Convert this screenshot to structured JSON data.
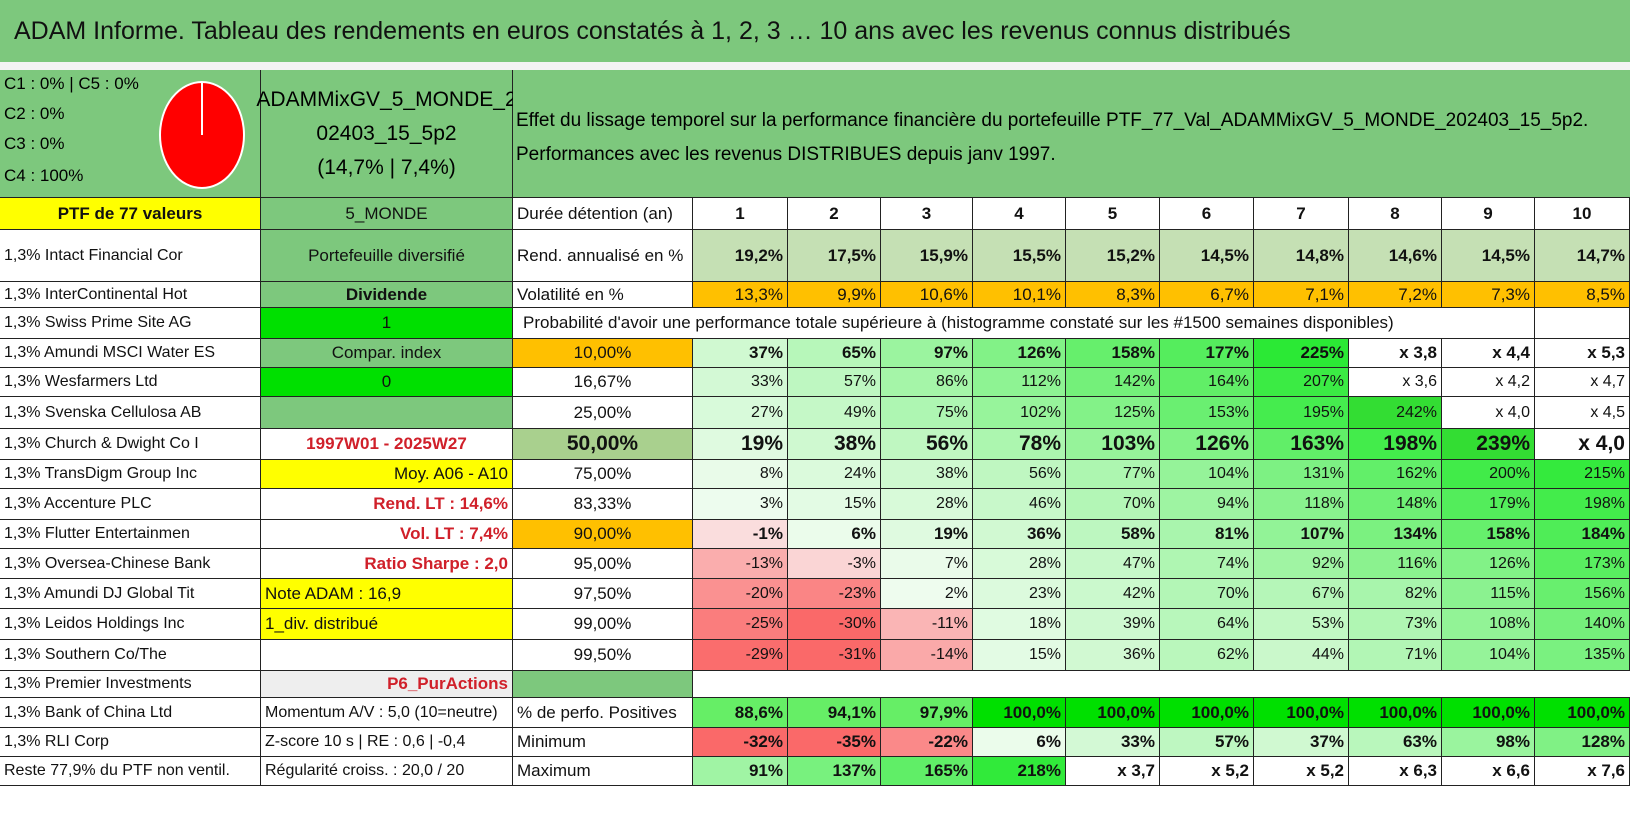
{
  "title": "ADAM Informe. Tableau des rendements en euros constatés à 1, 2, 3 … 10 ans avec les revenus connus distribués",
  "legend": {
    "lines": [
      "C1 : 0% | C5 : 0%",
      "C2 : 0%",
      "C3 : 0%",
      "C4 : 100%"
    ],
    "pie": {
      "C4": 100,
      "color": "#ff0000"
    }
  },
  "portfolio": {
    "name_line1": "ADAMMixGV_5_MONDE_2",
    "name_line2": "02403_15_5p2",
    "name_line3": "(14,7% | 7,4%)"
  },
  "effect": {
    "line1": "Effet du lissage temporel sur la performance financière du portefeuille PTF_77_Val_ADAMMixGV_5_MONDE_202403_15_5p2.",
    "line2": "Performances avec les revenus DISTRIBUES depuis janv 1997."
  },
  "holdings": {
    "header": "PTF de 77 valeurs",
    "items": [
      "1,3% Intact Financial Cor",
      "1,3% InterContinental Hot",
      "1,3% Swiss Prime Site AG",
      "1,3% Amundi MSCI Water ES",
      "1,3% Wesfarmers Ltd",
      "1,3% Svenska Cellulosa AB",
      "1,3% Church & Dwight Co I",
      "1,3% TransDigm Group Inc",
      "1,3% Accenture PLC",
      "1,3% Flutter Entertainmen",
      "1,3% Oversea-Chinese Bank",
      "1,3% Amundi DJ Global Tit",
      "1,3% Leidos Holdings Inc",
      "1,3% Southern Co/The",
      "1,3% Premier Investments",
      "1,3% Bank of China Ltd",
      "1,3% RLI Corp",
      "Reste 77,9% du PTF non ventil."
    ]
  },
  "info": {
    "items": [
      "5_MONDE",
      "Portefeuille diversifié",
      "Dividende",
      "1",
      "Compar. index",
      "0",
      "",
      "1997W01 - 2025W27",
      "Moy. A06 - A10",
      "Rend. LT : 14,6%",
      "Vol. LT : 7,4%",
      "Ratio Sharpe : 2,0",
      "Note ADAM : 16,9",
      "1_div. distribué",
      "",
      "P6_PurActions",
      "Momentum A/V : 5,0 (10=neutre)",
      "Z-score 10 s | RE : 0,6 | -0,4",
      "Régularité croiss. : 20,0 / 20"
    ]
  },
  "table": {
    "duration_label": "Durée détention (an)",
    "years": [
      "1",
      "2",
      "3",
      "4",
      "5",
      "6",
      "7",
      "8",
      "9",
      "10"
    ],
    "annual_label": "Rend. annualisé en %",
    "annual": [
      "19,2%",
      "17,5%",
      "15,9%",
      "15,5%",
      "15,2%",
      "14,5%",
      "14,8%",
      "14,6%",
      "14,5%",
      "14,7%"
    ],
    "vol_label": "Volatilité en %",
    "vol": [
      "13,3%",
      "9,9%",
      "10,6%",
      "10,1%",
      "8,3%",
      "6,7%",
      "7,1%",
      "7,2%",
      "7,3%",
      "8,5%"
    ],
    "prob_label": "Probabilité d'avoir une performance totale supérieure à (histogramme constaté sur les #1500 semaines disponibles)",
    "percentiles": [
      "10,00%",
      "16,67%",
      "25,00%",
      "50,00%",
      "75,00%",
      "83,33%",
      "90,00%",
      "95,00%",
      "97,50%",
      "99,00%",
      "99,50%"
    ],
    "prob_rows": [
      [
        "37%",
        "65%",
        "97%",
        "126%",
        "158%",
        "177%",
        "225%",
        "x 3,8",
        "x 4,4",
        "x 5,3"
      ],
      [
        "33%",
        "57%",
        "86%",
        "112%",
        "142%",
        "164%",
        "207%",
        "x 3,6",
        "x 4,2",
        "x 4,7"
      ],
      [
        "27%",
        "49%",
        "75%",
        "102%",
        "125%",
        "153%",
        "195%",
        "242%",
        "x 4,0",
        "x 4,5"
      ],
      [
        "19%",
        "38%",
        "56%",
        "78%",
        "103%",
        "126%",
        "163%",
        "198%",
        "239%",
        "x 4,0"
      ],
      [
        "8%",
        "24%",
        "38%",
        "56%",
        "77%",
        "104%",
        "131%",
        "162%",
        "200%",
        "215%"
      ],
      [
        "3%",
        "15%",
        "28%",
        "46%",
        "70%",
        "94%",
        "118%",
        "148%",
        "179%",
        "198%"
      ],
      [
        "-1%",
        "6%",
        "19%",
        "36%",
        "58%",
        "81%",
        "107%",
        "134%",
        "158%",
        "184%"
      ],
      [
        "-13%",
        "-3%",
        "7%",
        "28%",
        "47%",
        "74%",
        "92%",
        "116%",
        "126%",
        "173%"
      ],
      [
        "-20%",
        "-23%",
        "2%",
        "23%",
        "42%",
        "70%",
        "67%",
        "82%",
        "115%",
        "156%"
      ],
      [
        "-25%",
        "-30%",
        "-11%",
        "18%",
        "39%",
        "64%",
        "53%",
        "73%",
        "108%",
        "140%"
      ],
      [
        "-29%",
        "-31%",
        "-14%",
        "15%",
        "36%",
        "62%",
        "44%",
        "71%",
        "104%",
        "135%"
      ]
    ],
    "positive_label": "% de perfo. Positives",
    "positive": [
      "88,6%",
      "94,1%",
      "97,9%",
      "100,0%",
      "100,0%",
      "100,0%",
      "100,0%",
      "100,0%",
      "100,0%",
      "100,0%"
    ],
    "min_label": "Minimum",
    "min": [
      "-32%",
      "-35%",
      "-22%",
      "6%",
      "33%",
      "57%",
      "37%",
      "63%",
      "98%",
      "128%"
    ],
    "max_label": "Maximum",
    "max": [
      "91%",
      "137%",
      "165%",
      "218%",
      "x 3,7",
      "x 5,2",
      "x 5,2",
      "x 6,3",
      "x 6,6",
      "x 7,6"
    ]
  },
  "colors": {
    "header_green": "#7dc87d",
    "yellow": "#ffff00",
    "orange": "#ffc000",
    "bright_green": "#00e000",
    "red": "#d0202a"
  }
}
